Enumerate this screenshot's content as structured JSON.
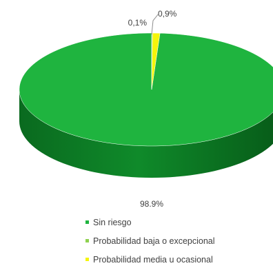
{
  "chart_data": {
    "type": "pie",
    "title": "",
    "labels": [
      "Sin riesgo",
      "Probabilidad baja o excepcional",
      "Probabilidad media u ocasional"
    ],
    "values": [
      98.9,
      0.1,
      0.9
    ],
    "data_labels": [
      "98,9%",
      "0,1%",
      "0,9%"
    ],
    "colors": [
      "#1fb43f",
      "#8fd14f",
      "#f5f50a"
    ],
    "legend_position": "bottom",
    "three_d": true
  }
}
